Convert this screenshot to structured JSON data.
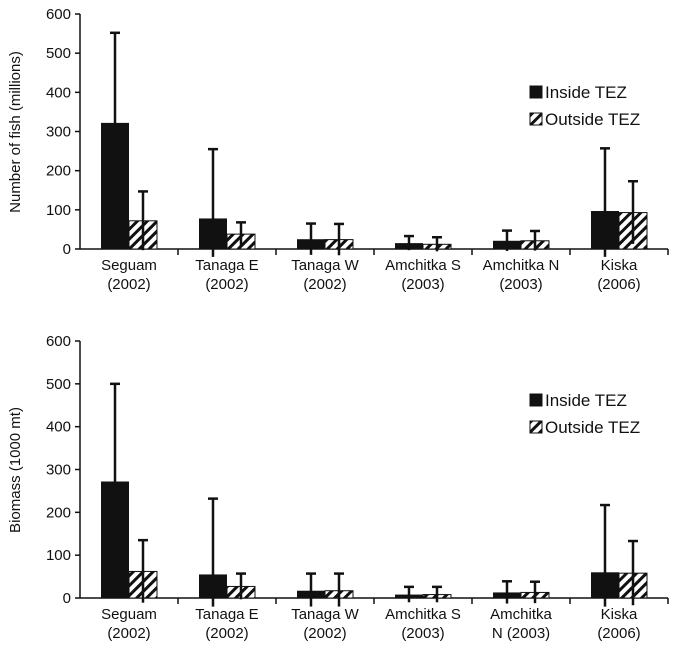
{
  "chart_data": [
    {
      "type": "bar",
      "title": "",
      "xlabel": "",
      "ylabel": "Number of fish (millions)",
      "ylim": [
        0,
        600
      ],
      "yticks": [
        0,
        100,
        200,
        300,
        400,
        500,
        600
      ],
      "grid": false,
      "legend_position": "right",
      "categories": [
        [
          "Seguam",
          "(2002)"
        ],
        [
          "Tanaga E",
          "(2002)"
        ],
        [
          "Tanaga W",
          "(2002)"
        ],
        [
          "Amchitka S",
          "(2003)"
        ],
        [
          "Amchitka N",
          "(2003)"
        ],
        [
          "Kiska",
          "(2006)"
        ]
      ],
      "series": [
        {
          "name": "Inside TEZ",
          "style": "solid",
          "color": "#111111",
          "values": [
            322,
            78,
            25,
            15,
            21,
            97
          ],
          "error": [
            230,
            177,
            40,
            18,
            26,
            160
          ]
        },
        {
          "name": "Outside TEZ",
          "style": "hatched",
          "color": "#111111",
          "values": [
            72,
            38,
            24,
            12,
            21,
            93
          ],
          "error": [
            75,
            30,
            40,
            18,
            25,
            80
          ]
        }
      ]
    },
    {
      "type": "bar",
      "title": "",
      "xlabel": "",
      "ylabel": "Biomass (1000 mt)",
      "ylim": [
        0,
        600
      ],
      "yticks": [
        0,
        100,
        200,
        300,
        400,
        500,
        600
      ],
      "grid": false,
      "legend_position": "right",
      "categories": [
        [
          "Seguam",
          "(2002)"
        ],
        [
          "Tanaga E",
          "(2002)"
        ],
        [
          "Tanaga W",
          "(2002)"
        ],
        [
          "Amchitka S",
          "(2003)"
        ],
        [
          "Amchitka",
          "N (2003)"
        ],
        [
          "Kiska",
          "(2006)"
        ]
      ],
      "series": [
        {
          "name": "Inside TEZ",
          "style": "solid",
          "color": "#111111",
          "values": [
            272,
            55,
            17,
            8,
            13,
            60
          ],
          "error": [
            228,
            177,
            40,
            18,
            26,
            157
          ]
        },
        {
          "name": "Outside TEZ",
          "style": "hatched",
          "color": "#111111",
          "values": [
            62,
            27,
            17,
            8,
            13,
            58
          ],
          "error": [
            73,
            30,
            40,
            18,
            25,
            75
          ]
        }
      ]
    }
  ]
}
